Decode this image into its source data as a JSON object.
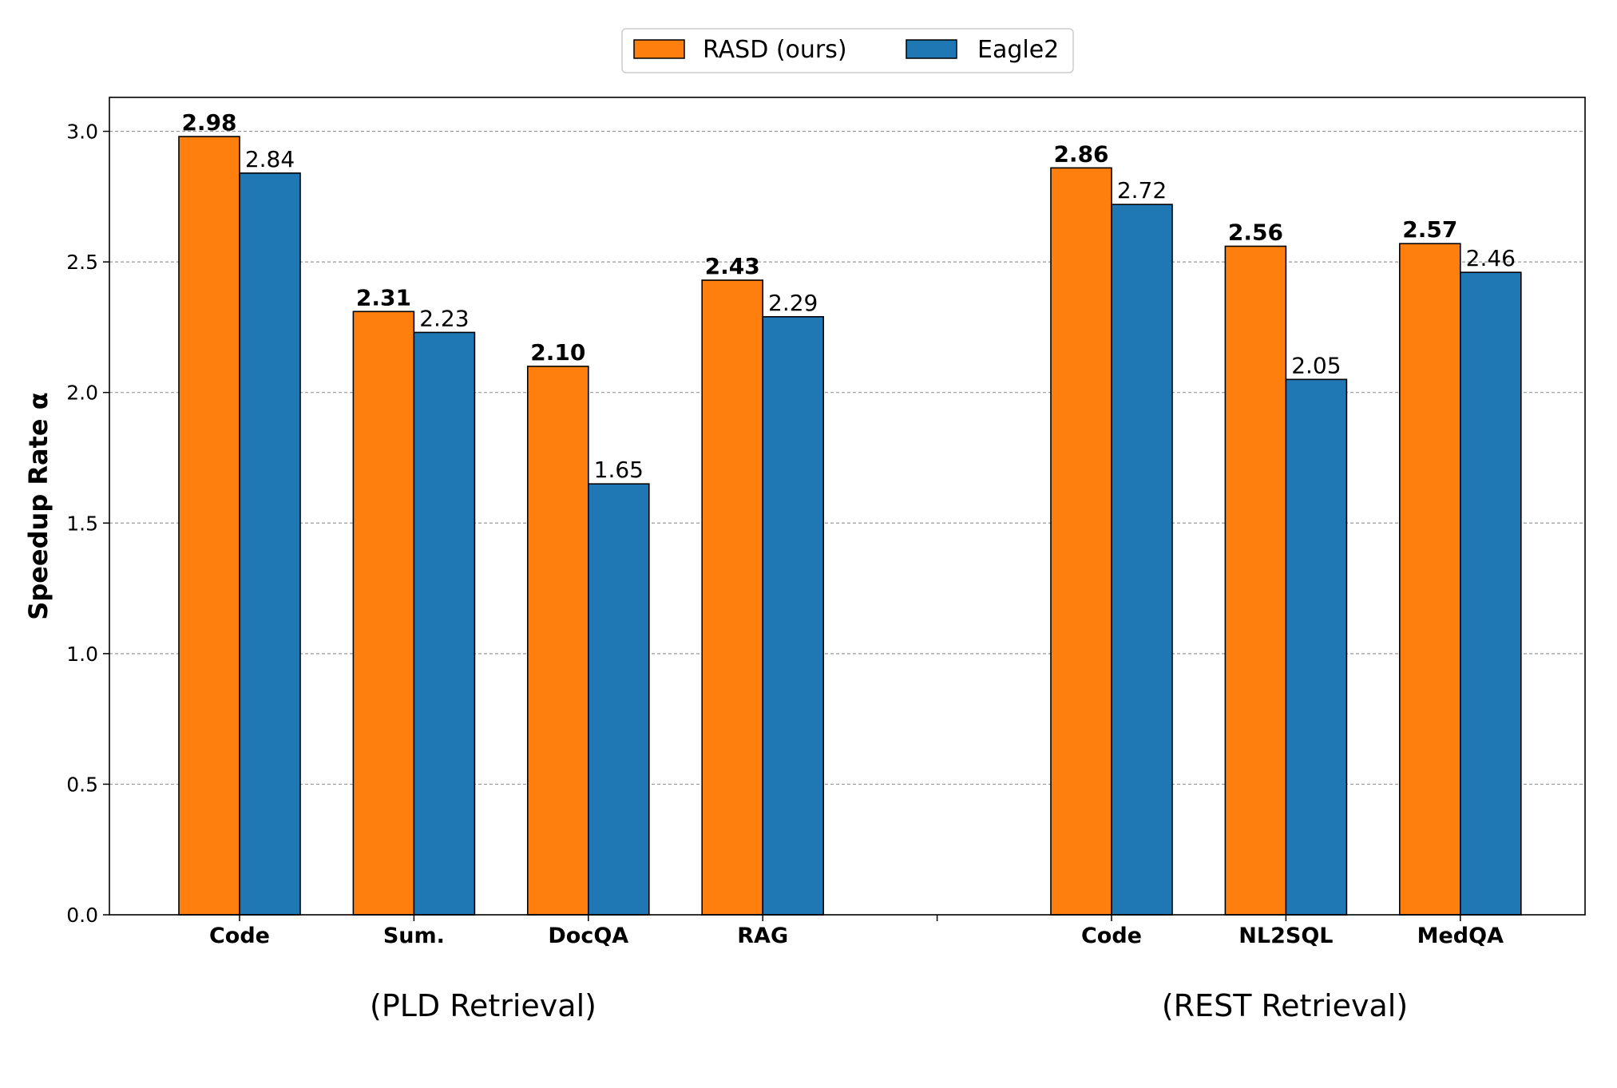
{
  "chart_data": {
    "type": "bar",
    "categories": [
      "Code",
      "Sum.",
      "DocQA",
      "RAG",
      "",
      "Code",
      "NL2SQL",
      "MedQA"
    ],
    "series": [
      {
        "name": "RASD (ours)",
        "color": "#ff7f0e",
        "values": [
          2.98,
          2.31,
          2.1,
          2.43,
          null,
          2.86,
          2.56,
          2.57
        ],
        "labels": [
          "2.98",
          "2.31",
          "2.10",
          "2.43",
          null,
          "2.86",
          "2.56",
          "2.57"
        ]
      },
      {
        "name": "Eagle2",
        "color": "#1f77b4",
        "values": [
          2.84,
          2.23,
          1.65,
          2.29,
          null,
          2.72,
          2.05,
          2.46
        ],
        "labels": [
          "2.84",
          "2.23",
          "1.65",
          "2.29",
          null,
          "2.72",
          "2.05",
          "2.46"
        ]
      }
    ],
    "groups": [
      "(PLD Retrieval)",
      "(REST Retrieval)"
    ],
    "ylabel": "Speedup Rate α",
    "yticks": [
      "0.0",
      "0.5",
      "1.0",
      "1.5",
      "2.0",
      "2.5",
      "3.0"
    ],
    "ylim": [
      0,
      3.13
    ],
    "grid": true,
    "legend_position": "top-center"
  }
}
